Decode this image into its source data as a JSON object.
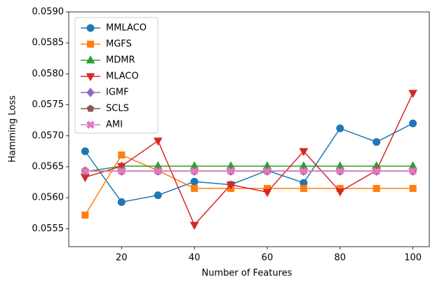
{
  "chart_data": {
    "type": "line",
    "x_label": "Number of Features",
    "y_label": "Hamming Loss",
    "x": [
      10,
      20,
      30,
      40,
      50,
      60,
      70,
      80,
      90,
      100
    ],
    "xlim": [
      5.5,
      104.5
    ],
    "xticks": [
      20,
      40,
      60,
      80,
      100
    ],
    "ylim": [
      0.05521,
      0.059
    ],
    "yticks": [
      0.0555,
      {
        "value": 0.056,
        "label": "0.0560"
      },
      0.0565,
      {
        "value": 0.057,
        "label": "0.0570"
      },
      0.0575,
      {
        "value": 0.058,
        "label": "0.0580"
      },
      0.0585,
      {
        "value": 0.059,
        "label": "0.0590"
      }
    ],
    "legend": "upper-left",
    "series": [
      {
        "name": "MMLACO",
        "color": "#1f77b4",
        "marker": "circle",
        "values": [
          0.05675,
          0.05593,
          0.05604,
          0.05626,
          0.05621,
          0.05644,
          0.05624,
          0.05712,
          0.0569,
          0.0572
        ]
      },
      {
        "name": "MGFS",
        "color": "#ff7f0e",
        "marker": "square",
        "values": [
          0.05572,
          0.05669,
          0.05644,
          0.05615,
          0.05615,
          0.05615,
          0.05615,
          0.05615,
          0.05615,
          0.05615
        ]
      },
      {
        "name": "MDMR",
        "color": "#2ca02c",
        "marker": "triangle-up",
        "values": [
          0.05642,
          0.05651,
          0.05651,
          0.05651,
          0.05651,
          0.05651,
          0.05651,
          0.05651,
          0.05651,
          0.05651
        ]
      },
      {
        "name": "MLACO",
        "color": "#d62728",
        "marker": "triangle-down",
        "values": [
          0.05633,
          0.05651,
          0.05692,
          0.05556,
          0.05621,
          0.05609,
          0.05675,
          0.0561,
          0.05644,
          0.05769
        ]
      },
      {
        "name": "IGMF",
        "color": "#9467bd",
        "marker": "diamond",
        "values": [
          0.05643,
          0.05643,
          0.05643,
          0.05643,
          0.05643,
          0.05643,
          0.05643,
          0.05643,
          0.05643,
          0.05643
        ]
      },
      {
        "name": "SCLS",
        "color": "#8c564b",
        "marker": "pentagon",
        "values": [
          0.05643,
          0.05643,
          0.05643,
          0.05643,
          0.05643,
          0.05643,
          0.05643,
          0.05643,
          0.05643,
          0.05643
        ]
      },
      {
        "name": "AMI",
        "color": "#e377c2",
        "marker": "x",
        "values": [
          0.05643,
          0.05643,
          0.05643,
          0.05643,
          0.05643,
          0.05643,
          0.05643,
          0.05643,
          0.05643,
          0.05643
        ]
      }
    ]
  }
}
